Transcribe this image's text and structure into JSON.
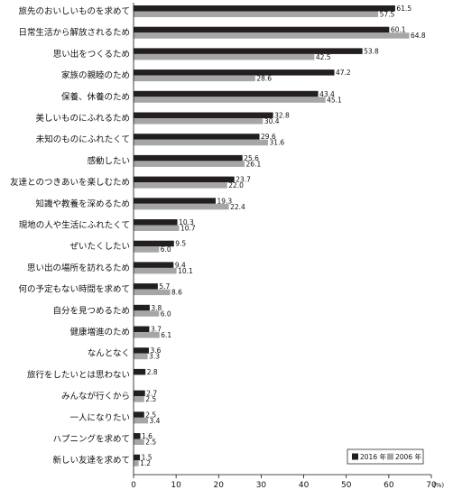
{
  "chart_data": {
    "type": "bar",
    "orientation": "horizontal",
    "categories": [
      "旅先のおいしいものを求めて",
      "日常生活から解放されるため",
      "思い出をつくるため",
      "家族の親睦のため",
      "保養、休養のため",
      "美しいものにふれるため",
      "未知のものにふれたくて",
      "感動したい",
      "友達とのつきあいを楽しむため",
      "知識や教養を深めるため",
      "現地の人や生活にふれたくて",
      "ぜいたくしたい",
      "思い出の場所を訪れるため",
      "何の予定もない時間を求めて",
      "自分を見つめるため",
      "健康増進のため",
      "なんとなく",
      "旅行をしたいとは思わない",
      "みんなが行くから",
      "一人になりたい",
      "ハプニングを求めて",
      "新しい友達を求めて"
    ],
    "series": [
      {
        "name": "2016 年",
        "color": "#231f20",
        "values": [
          61.5,
          60.1,
          53.8,
          47.2,
          43.4,
          32.8,
          29.6,
          25.6,
          23.7,
          19.3,
          10.3,
          9.5,
          9.4,
          5.7,
          3.8,
          3.7,
          3.6,
          2.8,
          2.7,
          2.5,
          1.6,
          1.5
        ]
      },
      {
        "name": "2006 年",
        "color": "#a6a6a6",
        "values": [
          57.5,
          64.8,
          42.5,
          28.6,
          45.1,
          30.4,
          31.6,
          26.1,
          22.0,
          22.4,
          10.7,
          6.0,
          10.1,
          8.6,
          6.0,
          6.1,
          3.3,
          null,
          2.5,
          3.4,
          2.5,
          1.2
        ]
      }
    ],
    "xlim": [
      0,
      70
    ],
    "xticks": [
      "0",
      "10",
      "20",
      "30",
      "40",
      "50",
      "60",
      "70"
    ],
    "unit": "(%)",
    "legend_position": "bottom-right",
    "grid": false
  }
}
